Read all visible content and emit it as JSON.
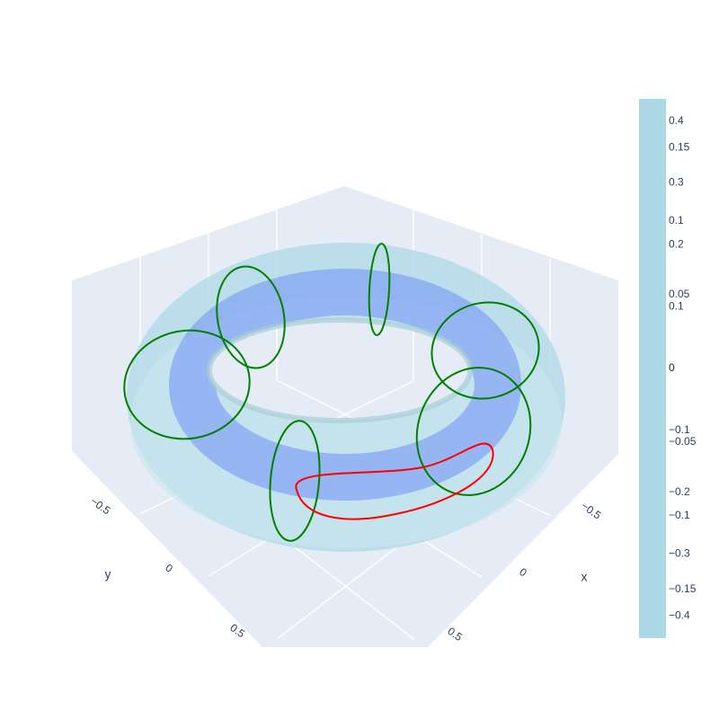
{
  "chart_data": {
    "type": "surface3d",
    "xlabel": "x",
    "ylabel": "y",
    "xlim": [
      -1,
      1
    ],
    "ylim": [
      -1,
      1
    ],
    "xticks": [
      {
        "value": -0.5,
        "label": "−0.5"
      },
      0,
      0.5
    ],
    "yticks": [
      {
        "value": -0.5,
        "label": "−0.5"
      },
      0,
      0.5
    ],
    "grid": true,
    "surface_color": "#add8e6",
    "band_color": "#6f8ff5",
    "contour_color": "#008000",
    "highlight_color": "#ff0000",
    "colorbars": [
      {
        "color": "#add8e6",
        "range": [
          -0.436,
          0.436
        ],
        "ticks": [
          {
            "value": -0.4,
            "label": "−0.4"
          },
          {
            "value": -0.3,
            "label": "−0.3"
          },
          {
            "value": -0.2,
            "label": "−0.2"
          },
          {
            "value": -0.1,
            "label": "−0.1"
          },
          0,
          0.1,
          0.2,
          0.3,
          0.4
        ]
      },
      {
        "color": "#add8e6",
        "range": [
          -0.183,
          0.183
        ],
        "ticks": [
          {
            "value": -0.15,
            "label": "−0.15"
          },
          {
            "value": -0.1,
            "label": "−0.1"
          },
          {
            "value": -0.05,
            "label": "−0.05"
          },
          0,
          0.05,
          0.1,
          0.15
        ]
      }
    ]
  }
}
